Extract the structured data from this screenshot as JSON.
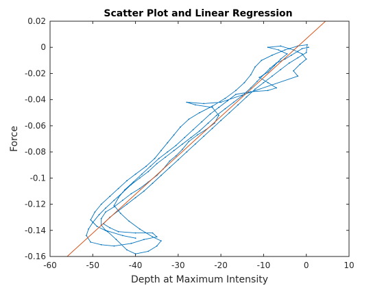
{
  "chart_data": {
    "type": "scatter",
    "title": "Scatter Plot and Linear Regression",
    "xlabel": "Depth at Maximum Intensity",
    "ylabel": "Force",
    "xlim": [
      -60,
      10
    ],
    "ylim": [
      -0.16,
      0.02
    ],
    "xticks": [
      -60,
      -50,
      -40,
      -30,
      -20,
      -10,
      0,
      10
    ],
    "yticks": [
      0.02,
      0,
      -0.02,
      -0.04,
      -0.06,
      -0.08,
      -0.1,
      -0.12,
      -0.14,
      -0.16
    ],
    "xtick_labels": [
      "-60",
      "-50",
      "-40",
      "-30",
      "-20",
      "-10",
      "0",
      "10"
    ],
    "ytick_labels": [
      "0.02",
      "0",
      "-0.02",
      "-0.04",
      "-0.06",
      "-0.08",
      "-0.1",
      "-0.12",
      "-0.14",
      "-0.16"
    ],
    "grid": false,
    "series": [
      {
        "kind": "scatter-trace",
        "color": "#0072BD",
        "points": [
          [
            0.5,
            0.0
          ],
          [
            -1,
            -0.001
          ],
          [
            -2,
            -0.003
          ],
          [
            -3.5,
            -0.006
          ],
          [
            -5,
            -0.009
          ],
          [
            -7,
            -0.012
          ],
          [
            -8.5,
            -0.016
          ],
          [
            -10,
            -0.021
          ],
          [
            -11.5,
            -0.026
          ],
          [
            -13,
            -0.031
          ],
          [
            -15,
            -0.037
          ],
          [
            -17,
            -0.042
          ],
          [
            -19,
            -0.047
          ],
          [
            -21,
            -0.052
          ],
          [
            -23,
            -0.058
          ],
          [
            -25,
            -0.064
          ],
          [
            -27,
            -0.069
          ],
          [
            -29,
            -0.074
          ],
          [
            -31,
            -0.079
          ],
          [
            -33,
            -0.084
          ],
          [
            -35,
            -0.089
          ],
          [
            -37,
            -0.095
          ],
          [
            -39,
            -0.1
          ],
          [
            -41,
            -0.105
          ],
          [
            -43,
            -0.111
          ],
          [
            -45,
            -0.117
          ],
          [
            -47,
            -0.123
          ],
          [
            -48.5,
            -0.128
          ],
          [
            -50,
            -0.134
          ],
          [
            -51,
            -0.139
          ],
          [
            -51.5,
            -0.144
          ],
          [
            -50.5,
            -0.149
          ],
          [
            -48,
            -0.151
          ],
          [
            -45,
            -0.152
          ],
          [
            -41,
            -0.15
          ],
          [
            -38,
            -0.147
          ],
          [
            -35,
            -0.145
          ],
          [
            -36,
            -0.142
          ],
          [
            -40,
            -0.142
          ],
          [
            -44,
            -0.141
          ],
          [
            -46,
            -0.138
          ],
          [
            -47.5,
            -0.135
          ],
          [
            -46,
            -0.13
          ],
          [
            -44,
            -0.125
          ],
          [
            -42,
            -0.12
          ],
          [
            -40,
            -0.115
          ],
          [
            -38,
            -0.11
          ],
          [
            -36,
            -0.104
          ],
          [
            -34,
            -0.098
          ],
          [
            -32,
            -0.092
          ],
          [
            -30,
            -0.086
          ],
          [
            -28,
            -0.08
          ],
          [
            -26,
            -0.074
          ],
          [
            -24,
            -0.068
          ],
          [
            -22,
            -0.062
          ],
          [
            -20,
            -0.056
          ],
          [
            -18,
            -0.05
          ],
          [
            -16,
            -0.044
          ],
          [
            -14,
            -0.038
          ],
          [
            -12,
            -0.032
          ],
          [
            -10,
            -0.027
          ],
          [
            -8,
            -0.022
          ],
          [
            -6,
            -0.017
          ],
          [
            -4,
            -0.012
          ],
          [
            -2,
            -0.008
          ],
          [
            0,
            -0.004
          ],
          [
            0.2,
            0.002
          ],
          [
            -2,
            0.001
          ],
          [
            -5,
            -0.002
          ],
          [
            -8,
            -0.006
          ],
          [
            -10.5,
            -0.01
          ],
          [
            -12,
            -0.015
          ],
          [
            -13,
            -0.021
          ],
          [
            -14.5,
            -0.027
          ],
          [
            -16.5,
            -0.033
          ],
          [
            -19,
            -0.039
          ],
          [
            -22,
            -0.045
          ],
          [
            -25,
            -0.05
          ],
          [
            -27.5,
            -0.055
          ],
          [
            -29.5,
            -0.061
          ],
          [
            -31,
            -0.067
          ],
          [
            -32.5,
            -0.073
          ],
          [
            -34,
            -0.079
          ],
          [
            -35.5,
            -0.085
          ],
          [
            -37.5,
            -0.091
          ],
          [
            -40,
            -0.097
          ],
          [
            -42,
            -0.102
          ],
          [
            -44,
            -0.108
          ],
          [
            -46,
            -0.114
          ],
          [
            -48,
            -0.12
          ],
          [
            -49.5,
            -0.126
          ],
          [
            -50.5,
            -0.132
          ],
          [
            -49,
            -0.137
          ],
          [
            -46.5,
            -0.141
          ],
          [
            -44.5,
            -0.147
          ],
          [
            -42,
            -0.155
          ],
          [
            -40,
            -0.158
          ],
          [
            -37,
            -0.156
          ],
          [
            -35,
            -0.152
          ],
          [
            -34,
            -0.148
          ],
          [
            -36,
            -0.145
          ],
          [
            -39,
            -0.139
          ],
          [
            -41.5,
            -0.133
          ],
          [
            -43.5,
            -0.127
          ],
          [
            -45,
            -0.121
          ],
          [
            -44,
            -0.115
          ],
          [
            -42.5,
            -0.109
          ],
          [
            -40.5,
            -0.103
          ],
          [
            -38.5,
            -0.097
          ],
          [
            -36.5,
            -0.091
          ],
          [
            -34.5,
            -0.085
          ],
          [
            -32.5,
            -0.08
          ],
          [
            -30.5,
            -0.075
          ],
          [
            -28.5,
            -0.069
          ],
          [
            -26.5,
            -0.063
          ],
          [
            -24.5,
            -0.057
          ],
          [
            -22.5,
            -0.051
          ],
          [
            -20.5,
            -0.046
          ],
          [
            -18.5,
            -0.041
          ],
          [
            -16.5,
            -0.036
          ],
          [
            -13,
            -0.034
          ],
          [
            -9,
            -0.033
          ],
          [
            -7,
            -0.031
          ],
          [
            -9,
            -0.027
          ],
          [
            -11,
            -0.023
          ],
          [
            -9,
            -0.019
          ],
          [
            -7.5,
            -0.014
          ],
          [
            -6,
            -0.009
          ],
          [
            -4.5,
            -0.005
          ],
          [
            -6.5,
            -0.002
          ],
          [
            -9,
            0.0
          ],
          [
            -6,
            0.001
          ],
          [
            -3,
            -0.002
          ],
          [
            -1,
            -0.005
          ],
          [
            0,
            -0.009
          ],
          [
            -1.5,
            -0.013
          ],
          [
            -3,
            -0.018
          ],
          [
            -2,
            -0.022
          ],
          [
            -20,
            -0.042
          ],
          [
            -24,
            -0.043
          ],
          [
            -28,
            -0.042
          ],
          [
            -26,
            -0.044
          ],
          [
            -22,
            -0.046
          ],
          [
            -20.5,
            -0.052
          ],
          [
            -21.5,
            -0.058
          ],
          [
            -23.5,
            -0.063
          ],
          [
            -25.5,
            -0.067
          ],
          [
            -27.5,
            -0.072
          ],
          [
            -29,
            -0.078
          ],
          [
            -30.5,
            -0.083
          ],
          [
            -32,
            -0.087
          ],
          [
            -33.5,
            -0.093
          ],
          [
            -35,
            -0.098
          ],
          [
            -37,
            -0.103
          ],
          [
            -39,
            -0.108
          ],
          [
            -41,
            -0.112
          ],
          [
            -43,
            -0.117
          ],
          [
            -45,
            -0.122
          ],
          [
            -47,
            -0.126
          ],
          [
            -48,
            -0.131
          ],
          [
            -48,
            -0.136
          ],
          [
            -47,
            -0.14
          ],
          [
            -43,
            -0.144
          ],
          [
            -40,
            -0.146
          ]
        ]
      },
      {
        "kind": "regression-line",
        "color": "#D95319",
        "x": [
          -56,
          4.5
        ],
        "y": [
          -0.16,
          0.02
        ]
      }
    ]
  }
}
